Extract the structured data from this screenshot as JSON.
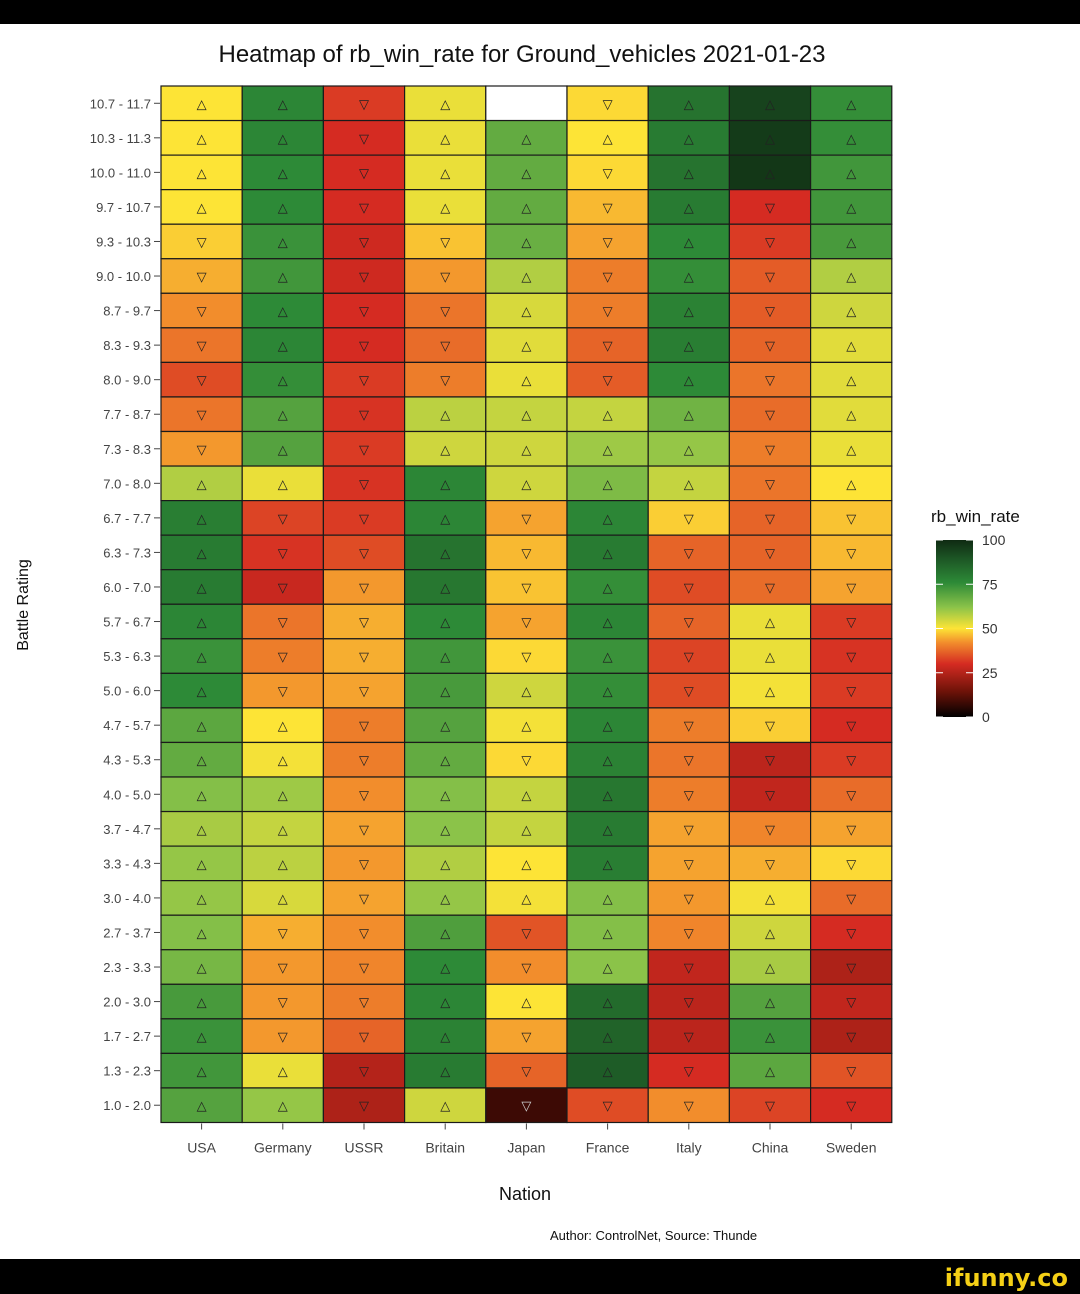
{
  "chart_data": {
    "type": "heatmap",
    "title": "Heatmap of rb_win_rate for Ground_vehicles 2021-01-23",
    "xlabel": "Nation",
    "ylabel": "Battle Rating",
    "nations": [
      "USA",
      "Germany",
      "USSR",
      "Britain",
      "Japan",
      "France",
      "Italy",
      "China",
      "Sweden"
    ],
    "battle_ratings": [
      "10.7 - 11.7",
      "10.3 - 11.3",
      "10.0 - 11.0",
      "9.7 - 10.7",
      "9.3 - 10.3",
      "9.0 - 10.0",
      "8.7 - 9.7",
      "8.3 - 9.3",
      "8.0 - 9.0",
      "7.7 - 8.7",
      "7.3 - 8.3",
      "7.0 - 8.0",
      "6.7 - 7.7",
      "6.3 - 7.3",
      "6.0 - 7.0",
      "5.7 - 6.7",
      "5.3 - 6.3",
      "5.0 - 6.0",
      "4.7 - 5.7",
      "4.3 - 5.3",
      "4.0 - 5.0",
      "3.7 - 4.7",
      "3.3 - 4.3",
      "3.0 - 4.0",
      "2.7 - 3.7",
      "2.3 - 3.3",
      "2.0 - 3.0",
      "1.7 - 2.7",
      "1.3 - 2.3",
      "1.0 - 2.0"
    ],
    "values": [
      [
        50,
        77,
        32,
        52,
        null,
        49,
        82,
        94,
        75
      ],
      [
        50,
        77,
        30,
        52,
        68,
        50,
        80,
        96,
        75
      ],
      [
        50,
        76,
        30,
        52,
        68,
        49,
        82,
        97,
        73
      ],
      [
        50,
        76,
        30,
        52,
        68,
        46,
        80,
        30,
        73
      ],
      [
        48,
        74,
        29,
        47,
        67,
        44,
        76,
        32,
        72
      ],
      [
        45,
        73,
        29,
        43,
        58,
        40,
        75,
        36,
        58
      ],
      [
        42,
        76,
        30,
        39,
        54,
        40,
        78,
        36,
        55
      ],
      [
        39,
        77,
        30,
        38,
        53,
        37,
        79,
        37,
        53
      ],
      [
        34,
        75,
        32,
        40,
        52,
        36,
        76,
        39,
        53
      ],
      [
        39,
        70,
        31,
        57,
        56,
        56,
        66,
        38,
        53
      ],
      [
        43,
        70,
        32,
        55,
        55,
        60,
        61,
        40,
        52
      ],
      [
        58,
        52,
        31,
        77,
        55,
        64,
        56,
        39,
        50
      ],
      [
        79,
        33,
        32,
        77,
        44,
        77,
        48,
        37,
        47
      ],
      [
        80,
        31,
        34,
        82,
        46,
        80,
        37,
        37,
        46
      ],
      [
        80,
        28,
        43,
        81,
        47,
        75,
        34,
        38,
        44
      ],
      [
        77,
        39,
        45,
        76,
        44,
        77,
        37,
        52,
        32
      ],
      [
        74,
        40,
        45,
        73,
        49,
        74,
        33,
        52,
        31
      ],
      [
        76,
        43,
        44,
        72,
        55,
        75,
        34,
        51,
        32
      ],
      [
        69,
        50,
        40,
        70,
        51,
        77,
        40,
        48,
        30
      ],
      [
        68,
        51,
        40,
        68,
        49,
        78,
        39,
        26,
        32
      ],
      [
        63,
        60,
        42,
        63,
        56,
        81,
        40,
        27,
        38
      ],
      [
        59,
        56,
        44,
        62,
        56,
        80,
        44,
        41,
        44
      ],
      [
        61,
        57,
        43,
        58,
        50,
        79,
        44,
        45,
        49
      ],
      [
        61,
        54,
        44,
        61,
        51,
        63,
        43,
        51,
        38
      ],
      [
        63,
        45,
        42,
        71,
        35,
        63,
        41,
        55,
        30
      ],
      [
        65,
        43,
        41,
        76,
        42,
        62,
        27,
        59,
        24
      ],
      [
        72,
        43,
        40,
        77,
        50,
        84,
        26,
        70,
        27
      ],
      [
        74,
        43,
        37,
        78,
        44,
        86,
        26,
        74,
        24
      ],
      [
        73,
        52,
        25,
        80,
        37,
        88,
        30,
        69,
        35
      ],
      [
        70,
        61,
        24,
        55,
        8,
        34,
        42,
        33,
        30
      ]
    ],
    "symbols": {
      "up": "△",
      "down": "▽"
    },
    "legend": {
      "title": "rb_win_rate",
      "ticks": [
        100,
        75,
        50,
        25,
        0
      ],
      "placement": "right"
    },
    "colorscale": [
      "#000000",
      "#6b1208",
      "#d52b22",
      "#f28d2c",
      "#fde436",
      "#8bc349",
      "#2d8a37",
      "#0f2a12"
    ],
    "caption": "Author: ControlNet, Source: Thunde"
  },
  "watermark": "ifunny.co"
}
